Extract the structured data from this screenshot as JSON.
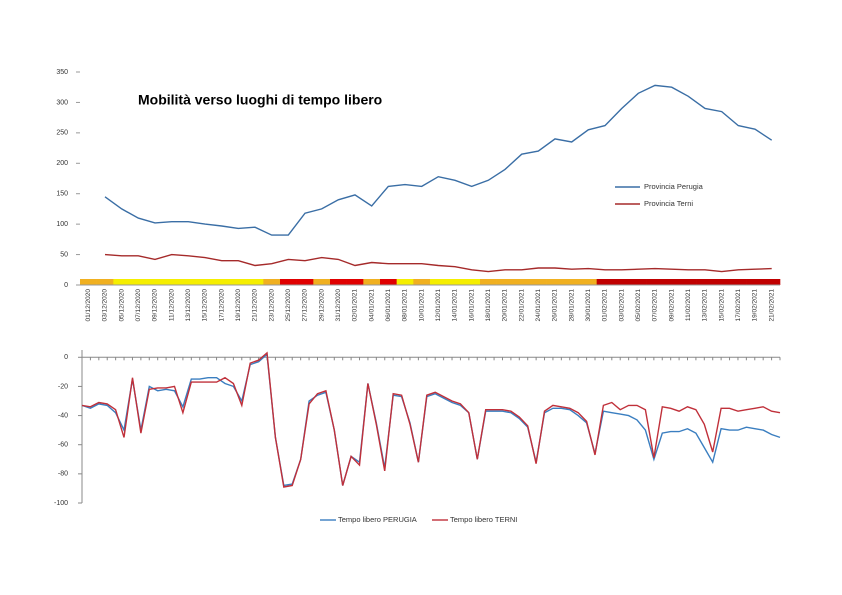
{
  "chart_data": [
    {
      "type": "line",
      "title": "Mobilità verso luoghi di tempo libero",
      "categories": [
        "01/12/2020",
        "03/12/2020",
        "05/12/2020",
        "07/12/2020",
        "09/12/2020",
        "11/12/2020",
        "13/12/2020",
        "15/12/2020",
        "17/12/2020",
        "19/12/2020",
        "21/12/2020",
        "23/12/2020",
        "25/12/2020",
        "27/12/2020",
        "29/12/2020",
        "31/12/2020",
        "02/01/2021",
        "04/01/2021",
        "06/01/2021",
        "08/01/2021",
        "10/01/2021",
        "12/01/2021",
        "14/01/2021",
        "16/01/2021",
        "18/01/2021",
        "20/01/2021",
        "22/01/2021",
        "24/01/2021",
        "26/01/2021",
        "28/01/2021",
        "30/01/2021",
        "01/02/2021",
        "03/02/2021",
        "05/02/2021",
        "07/02/2021",
        "09/02/2021",
        "11/02/2021",
        "13/02/2021",
        "15/02/2021",
        "17/02/2021",
        "19/02/2021",
        "21/02/2021"
      ],
      "series": [
        {
          "name": "Provincia Perugia",
          "color": "#3a6ea5",
          "values": [
            null,
            145,
            125,
            110,
            102,
            104,
            104,
            100,
            97,
            93,
            95,
            82,
            82,
            118,
            125,
            140,
            148,
            130,
            162,
            165,
            162,
            178,
            172,
            162,
            172,
            190,
            215,
            220,
            240,
            235,
            255,
            262,
            290,
            315,
            328,
            325,
            310,
            290,
            285,
            262,
            256,
            238
          ]
        },
        {
          "name": "Provincia Terni",
          "color": "#a52a2a",
          "values": [
            null,
            50,
            48,
            48,
            42,
            50,
            48,
            45,
            40,
            40,
            32,
            35,
            42,
            40,
            45,
            42,
            32,
            37,
            35,
            35,
            35,
            32,
            30,
            25,
            22,
            25,
            25,
            28,
            28,
            26,
            27,
            25,
            25,
            26,
            27,
            26,
            25,
            25,
            22,
            25,
            26,
            27
          ]
        }
      ],
      "zone_colors": [
        "#f0b020",
        "#f0b020",
        "#f5ee00",
        "#f5ee00",
        "#f5ee00",
        "#f5ee00",
        "#f5ee00",
        "#f5ee00",
        "#f5ee00",
        "#f5ee00",
        "#f5ee00",
        "#f0b020",
        "#e00000",
        "#e00000",
        "#f0b020",
        "#e00000",
        "#e00000",
        "#f0b020",
        "#e00000",
        "#f5ee00",
        "#f0b020",
        "#f5ee00",
        "#f5ee00",
        "#f5ee00",
        "#f0b020",
        "#f0b020",
        "#f0b020",
        "#f0b020",
        "#f0b020",
        "#f0b020",
        "#f0b020",
        "#c00000",
        "#c00000",
        "#c00000",
        "#c00000",
        "#c00000",
        "#c00000",
        "#c00000",
        "#c00000",
        "#c00000",
        "#c00000",
        "#c00000"
      ],
      "ylim": [
        0,
        350
      ],
      "yticks": [
        0,
        50,
        100,
        150,
        200,
        250,
        300,
        350
      ]
    },
    {
      "type": "line",
      "series": [
        {
          "name": "Tempo libero PERUGIA",
          "color": "#3a7ec0",
          "values": [
            -33,
            -35,
            -32,
            -33,
            -38,
            -50,
            -15,
            -50,
            -20,
            -23,
            -22,
            -23,
            -34,
            -15,
            -15,
            -14,
            -14,
            -18,
            -20,
            -30,
            -5,
            -3,
            2,
            -55,
            -88,
            -87,
            -70,
            -30,
            -26,
            -24,
            -50,
            -88,
            -68,
            -72,
            -18,
            -45,
            -76,
            -26,
            -27,
            -45,
            -72,
            -27,
            -25,
            -28,
            -31,
            -33,
            -38,
            -70,
            -37,
            -37,
            -37,
            -38,
            -42,
            -48,
            -72,
            -38,
            -35,
            -35,
            -36,
            -40,
            -45,
            -66,
            -37,
            -38,
            -39,
            -40,
            -43,
            -50,
            -70,
            -52,
            -51,
            -51,
            -49,
            -52,
            -62,
            -72,
            -49,
            -50,
            -50,
            -48,
            -49,
            -50,
            -53,
            -55
          ]
        },
        {
          "name": "Tempo libero TERNI",
          "color": "#c0303a",
          "values": [
            -33,
            -34,
            -31,
            -32,
            -36,
            -55,
            -14,
            -52,
            -22,
            -21,
            -21,
            -20,
            -38,
            -17,
            -17,
            -17,
            -17,
            -14,
            -18,
            -33,
            -4,
            -2,
            3,
            -55,
            -89,
            -88,
            -70,
            -32,
            -25,
            -23,
            -50,
            -88,
            -68,
            -74,
            -18,
            -46,
            -78,
            -25,
            -26,
            -46,
            -72,
            -26,
            -24,
            -27,
            -30,
            -32,
            -38,
            -70,
            -36,
            -36,
            -36,
            -37,
            -41,
            -47,
            -73,
            -37,
            -33,
            -34,
            -35,
            -38,
            -44,
            -67,
            -33,
            -31,
            -36,
            -33,
            -33,
            -36,
            -69,
            -34,
            -35,
            -37,
            -34,
            -36,
            -46,
            -65,
            -35,
            -35,
            -37,
            -36,
            -35,
            -34,
            -37,
            -38
          ]
        }
      ],
      "ylim": [
        -100,
        5
      ],
      "yticks": [
        0,
        -20,
        -40,
        -60,
        -80,
        -100
      ]
    }
  ]
}
